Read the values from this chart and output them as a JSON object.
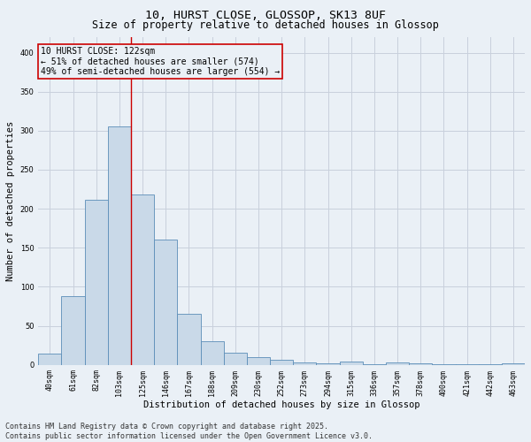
{
  "title_line1": "10, HURST CLOSE, GLOSSOP, SK13 8UF",
  "title_line2": "Size of property relative to detached houses in Glossop",
  "xlabel": "Distribution of detached houses by size in Glossop",
  "ylabel": "Number of detached properties",
  "categories": [
    "40sqm",
    "61sqm",
    "82sqm",
    "103sqm",
    "125sqm",
    "146sqm",
    "167sqm",
    "188sqm",
    "209sqm",
    "230sqm",
    "252sqm",
    "273sqm",
    "294sqm",
    "315sqm",
    "336sqm",
    "357sqm",
    "378sqm",
    "400sqm",
    "421sqm",
    "442sqm",
    "463sqm"
  ],
  "values": [
    14,
    88,
    212,
    305,
    218,
    160,
    65,
    30,
    16,
    10,
    6,
    3,
    2,
    4,
    1,
    3,
    2,
    1,
    1,
    1,
    2
  ],
  "bar_color": "#c9d9e8",
  "bar_edge_color": "#5b8db8",
  "grid_color": "#c8d0dc",
  "background_color": "#eaf0f6",
  "annotation_box_text": "10 HURST CLOSE: 122sqm\n← 51% of detached houses are smaller (574)\n49% of semi-detached houses are larger (554) →",
  "annotation_box_color": "#cc0000",
  "vline_x": 3.5,
  "vline_color": "#cc0000",
  "ylim": [
    0,
    420
  ],
  "yticks": [
    0,
    50,
    100,
    150,
    200,
    250,
    300,
    350,
    400
  ],
  "footer_line1": "Contains HM Land Registry data © Crown copyright and database right 2025.",
  "footer_line2": "Contains public sector information licensed under the Open Government Licence v3.0.",
  "title_fontsize": 9.5,
  "subtitle_fontsize": 8.5,
  "axis_label_fontsize": 7.5,
  "tick_fontsize": 6.0,
  "footer_fontsize": 6.0,
  "annotation_fontsize": 7.0
}
